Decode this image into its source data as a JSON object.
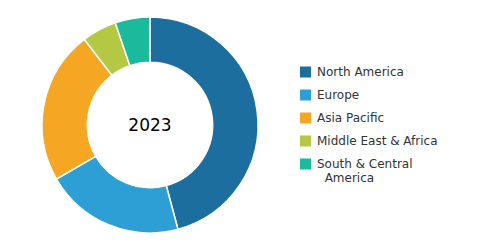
{
  "chart_data": {
    "type": "donut",
    "categories": [
      "North America",
      "Europe",
      "Asia Pacific",
      "Middle East & Africa",
      "South & Central\n  America"
    ],
    "values": [
      44,
      20,
      22,
      5,
      5
    ],
    "colors": [
      "#1b6e9e",
      "#2e9fd4",
      "#f5a623",
      "#b5c844",
      "#1cba9c"
    ],
    "annotations": [
      "2023"
    ],
    "legend": "right"
  }
}
